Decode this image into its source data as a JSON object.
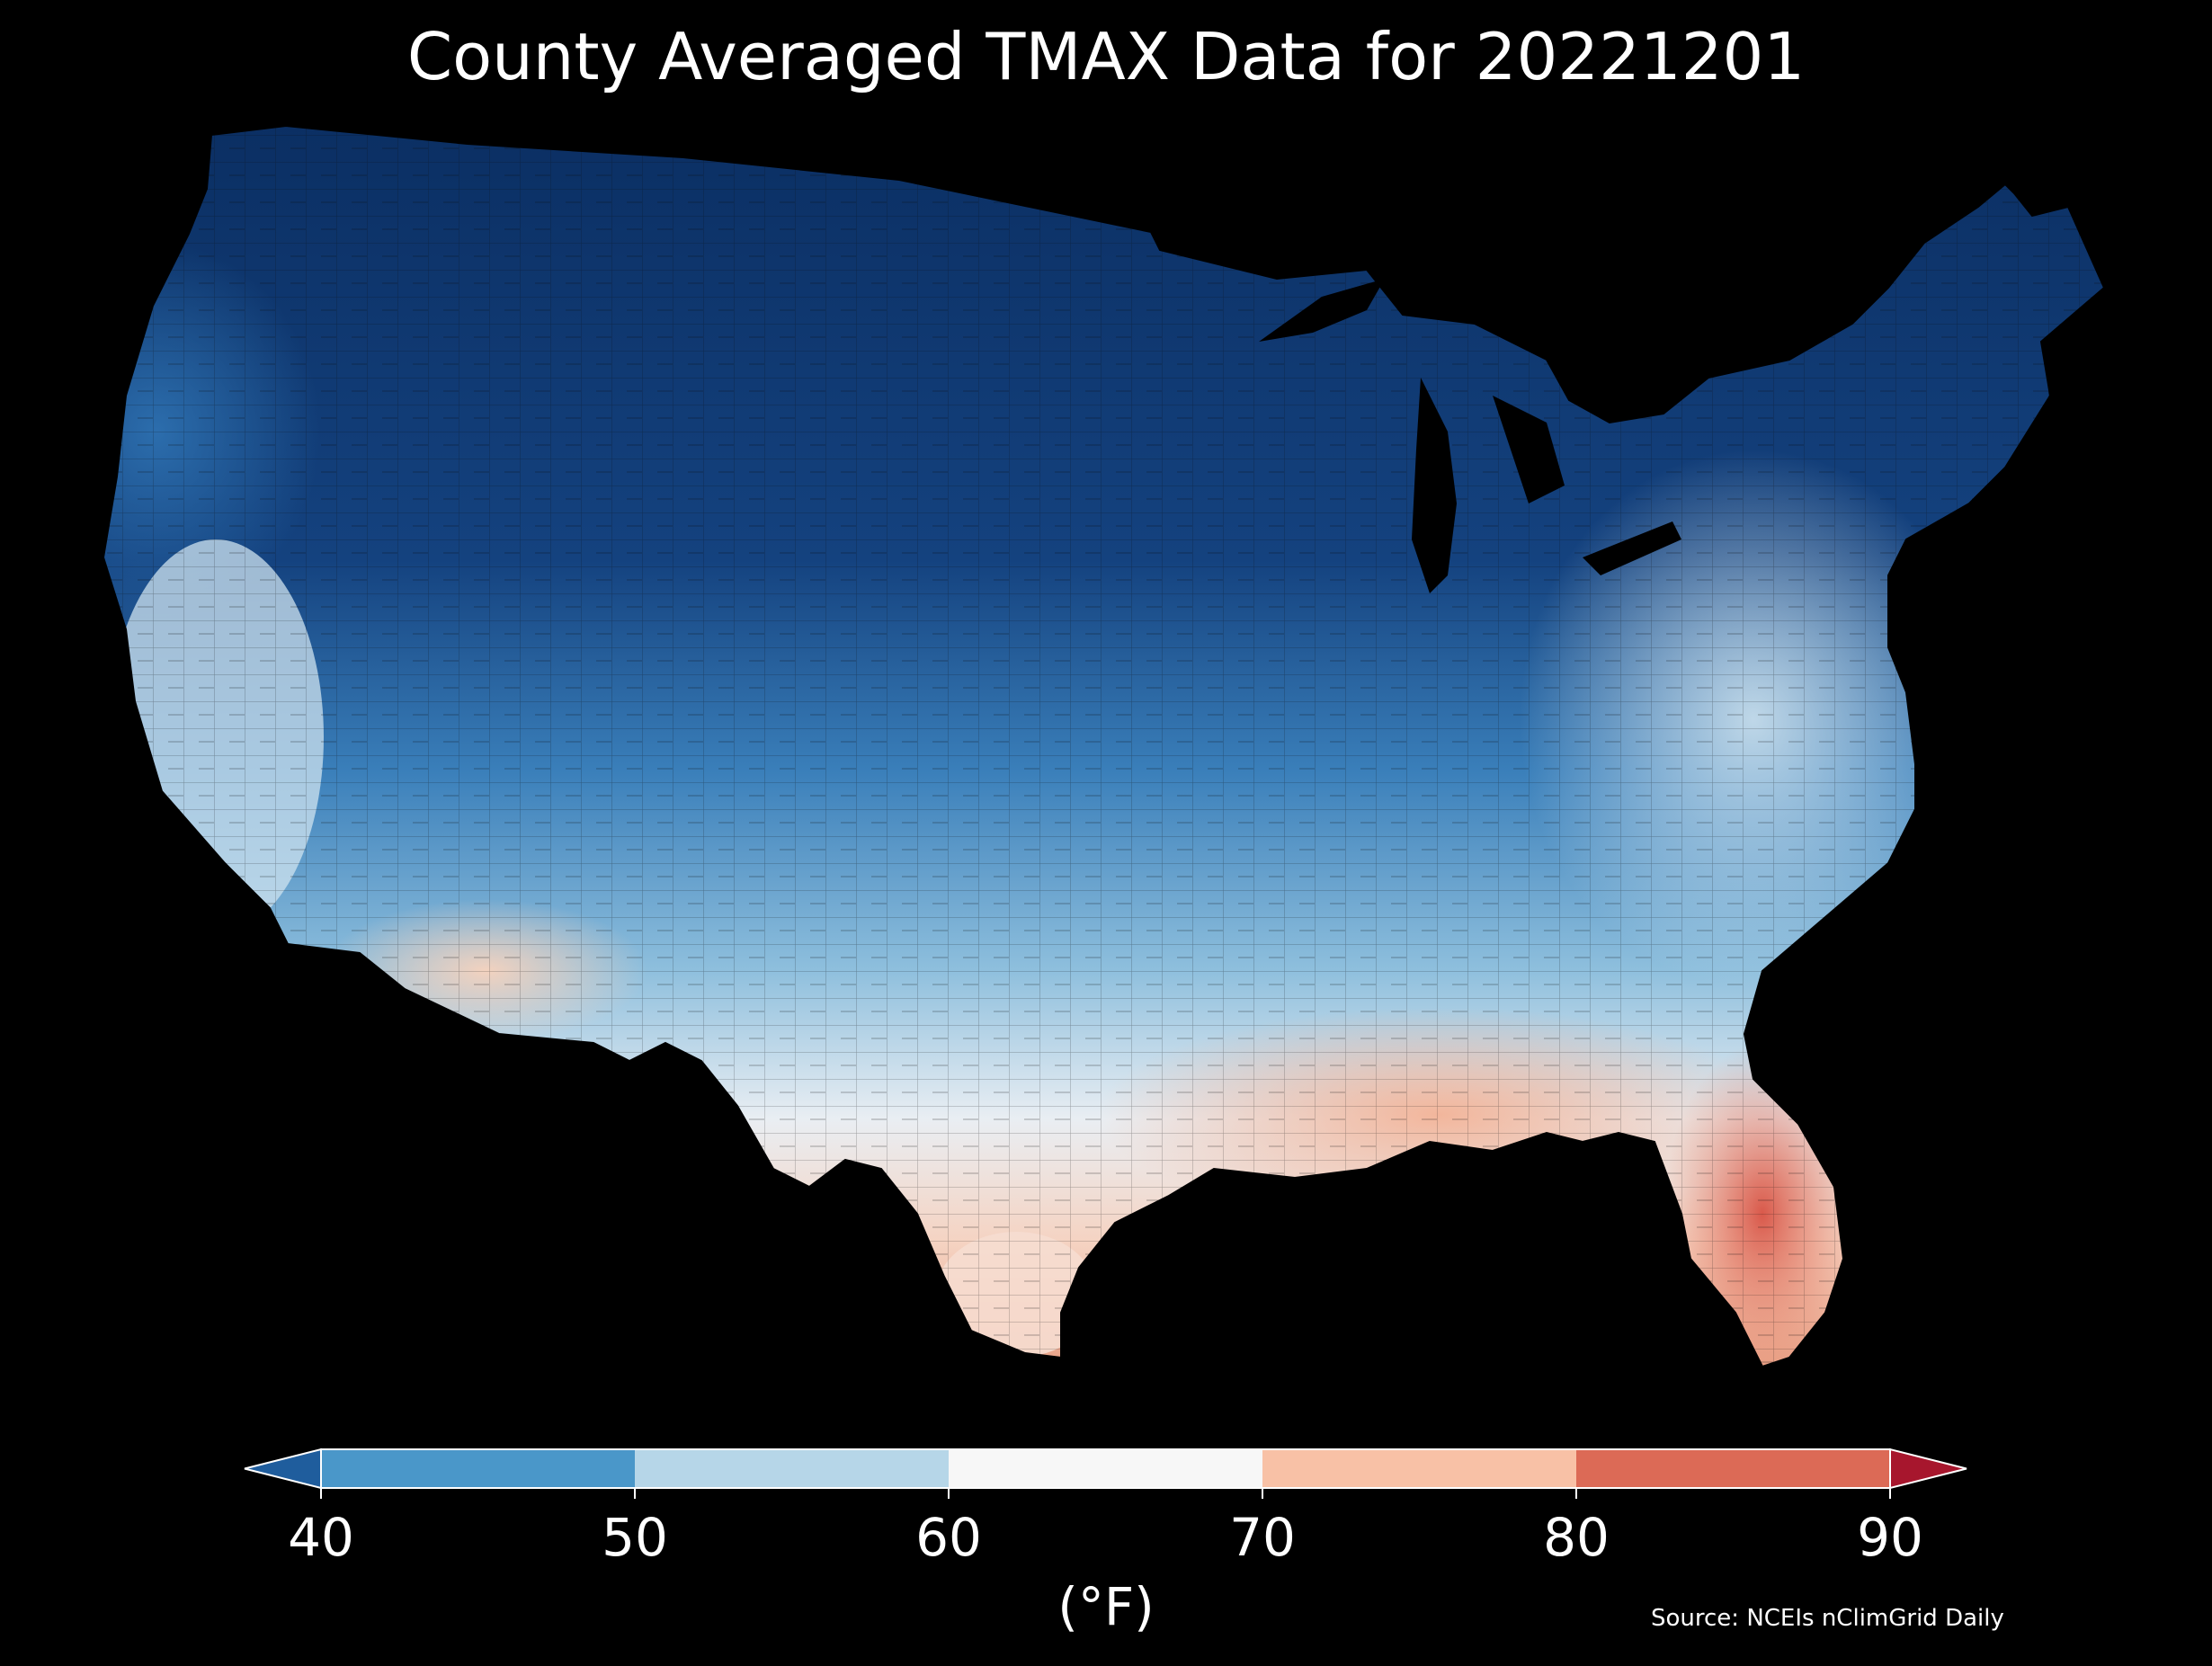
{
  "title": "County Averaged TMAX Data for 20221201",
  "colorbar": {
    "unit_label": "(°F)",
    "ticks": [
      "40",
      "50",
      "60",
      "70",
      "80",
      "90"
    ],
    "bins": [
      {
        "range": [
          40,
          50
        ],
        "color": "#4a97c9"
      },
      {
        "range": [
          50,
          60
        ],
        "color": "#b6d6e8"
      },
      {
        "range": [
          60,
          70
        ],
        "color": "#f7f7f7"
      },
      {
        "range": [
          70,
          80
        ],
        "color": "#f8c1a6"
      },
      {
        "range": [
          80,
          90
        ],
        "color": "#dc6a56"
      }
    ],
    "under_color": "#1f5d9d",
    "over_color": "#a7162d",
    "extend": "both"
  },
  "source": "Source: NCEIs nClimGrid Daily",
  "map": {
    "region": "contiguous United States",
    "units": "county",
    "gradient": "cold (dark blue) north-central plains and northern Rockies, warming to light blue/white across the mid-latitudes, orange-red in the Gulf Coast and Florida",
    "colors": {
      "deep_cold": "#0b2f63",
      "cold": "#1d5ea3",
      "cool": "#4a97c9",
      "mild": "#b6d6e8",
      "neutral": "#f2f2f2",
      "warm": "#f8c1a6",
      "hot": "#dc6a56",
      "background": "#000000",
      "county_border": "#111111"
    }
  }
}
